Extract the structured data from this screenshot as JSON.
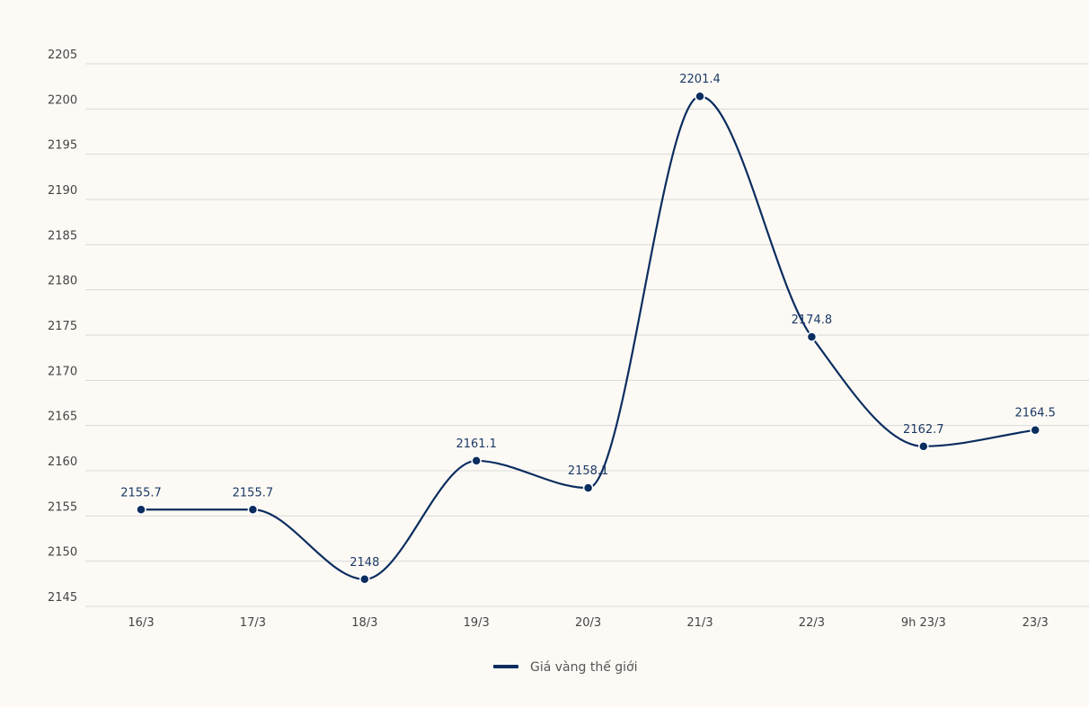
{
  "chart_data": {
    "type": "line",
    "categories": [
      "16/3",
      "17/3",
      "18/3",
      "19/3",
      "20/3",
      "21/3",
      "22/3",
      "9h 23/3",
      "23/3"
    ],
    "series": [
      {
        "name": "Giá vàng thế giới",
        "values": [
          2155.7,
          2155.7,
          2148,
          2161.1,
          2158.1,
          2201.4,
          2174.8,
          2162.7,
          2164.5
        ],
        "labels": [
          "2155.7",
          "2155.7",
          "2148",
          "2161.1",
          "2158.1",
          "2201.4",
          "2174.8",
          "2162.7",
          "2164.5"
        ],
        "color": "#0b2d5f"
      }
    ],
    "yticks": [
      "2145",
      "2150",
      "2155",
      "2160",
      "2165",
      "2170",
      "2175",
      "2180",
      "2185",
      "2190",
      "2195",
      "2200",
      "2205"
    ],
    "ylim": [
      2145,
      2205
    ],
    "grid": true,
    "legend_position": "bottom-center"
  }
}
